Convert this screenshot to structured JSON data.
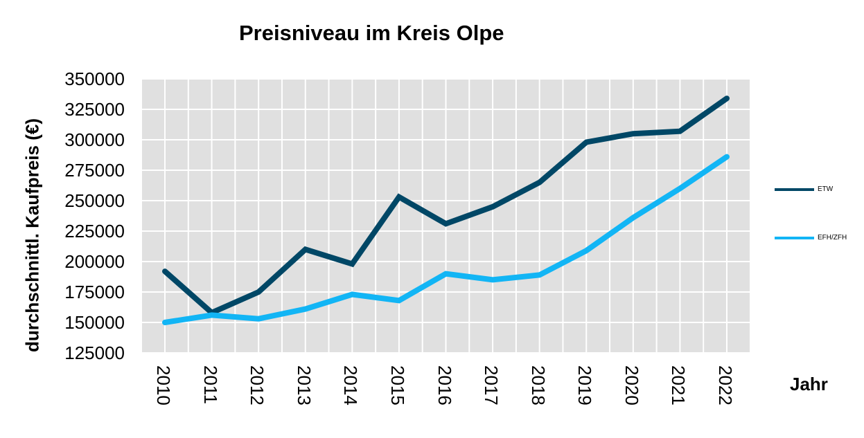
{
  "title": "Preisniveau im Kreis Olpe",
  "y_axis_label": "durchschnittl. Kaufpreis (€)",
  "x_axis_label": "Jahr",
  "colors": {
    "plot_bg": "#e0e0e0",
    "grid": "#ffffff",
    "etw": "#004766",
    "efh": "#12b5f5"
  },
  "chart_data": {
    "type": "line",
    "title": "Preisniveau im Kreis Olpe",
    "xlabel": "Jahr",
    "ylabel": "durchschnittl. Kaufpreis (€)",
    "x": [
      "2010",
      "2011",
      "2012",
      "2013",
      "2014",
      "2015",
      "2016",
      "2017",
      "2018",
      "2019",
      "2020",
      "2021",
      "2022"
    ],
    "series": [
      {
        "name": "ETW",
        "color": "#004766",
        "values": [
          192000,
          158000,
          175000,
          210000,
          198000,
          253000,
          231000,
          245000,
          265000,
          298000,
          305000,
          307000,
          334000
        ]
      },
      {
        "name": "EFH/ZFH",
        "color": "#12b5f5",
        "values": [
          150000,
          156000,
          153000,
          161000,
          173000,
          168000,
          190000,
          185000,
          189000,
          209000,
          236000,
          260000,
          286000
        ]
      }
    ],
    "ylim": [
      125000,
      350000
    ],
    "yticks": [
      "350000",
      "325000",
      "300000",
      "275000",
      "250000",
      "225000",
      "200000",
      "175000",
      "150000",
      "125000"
    ],
    "grid": true,
    "legend_position": "right"
  }
}
